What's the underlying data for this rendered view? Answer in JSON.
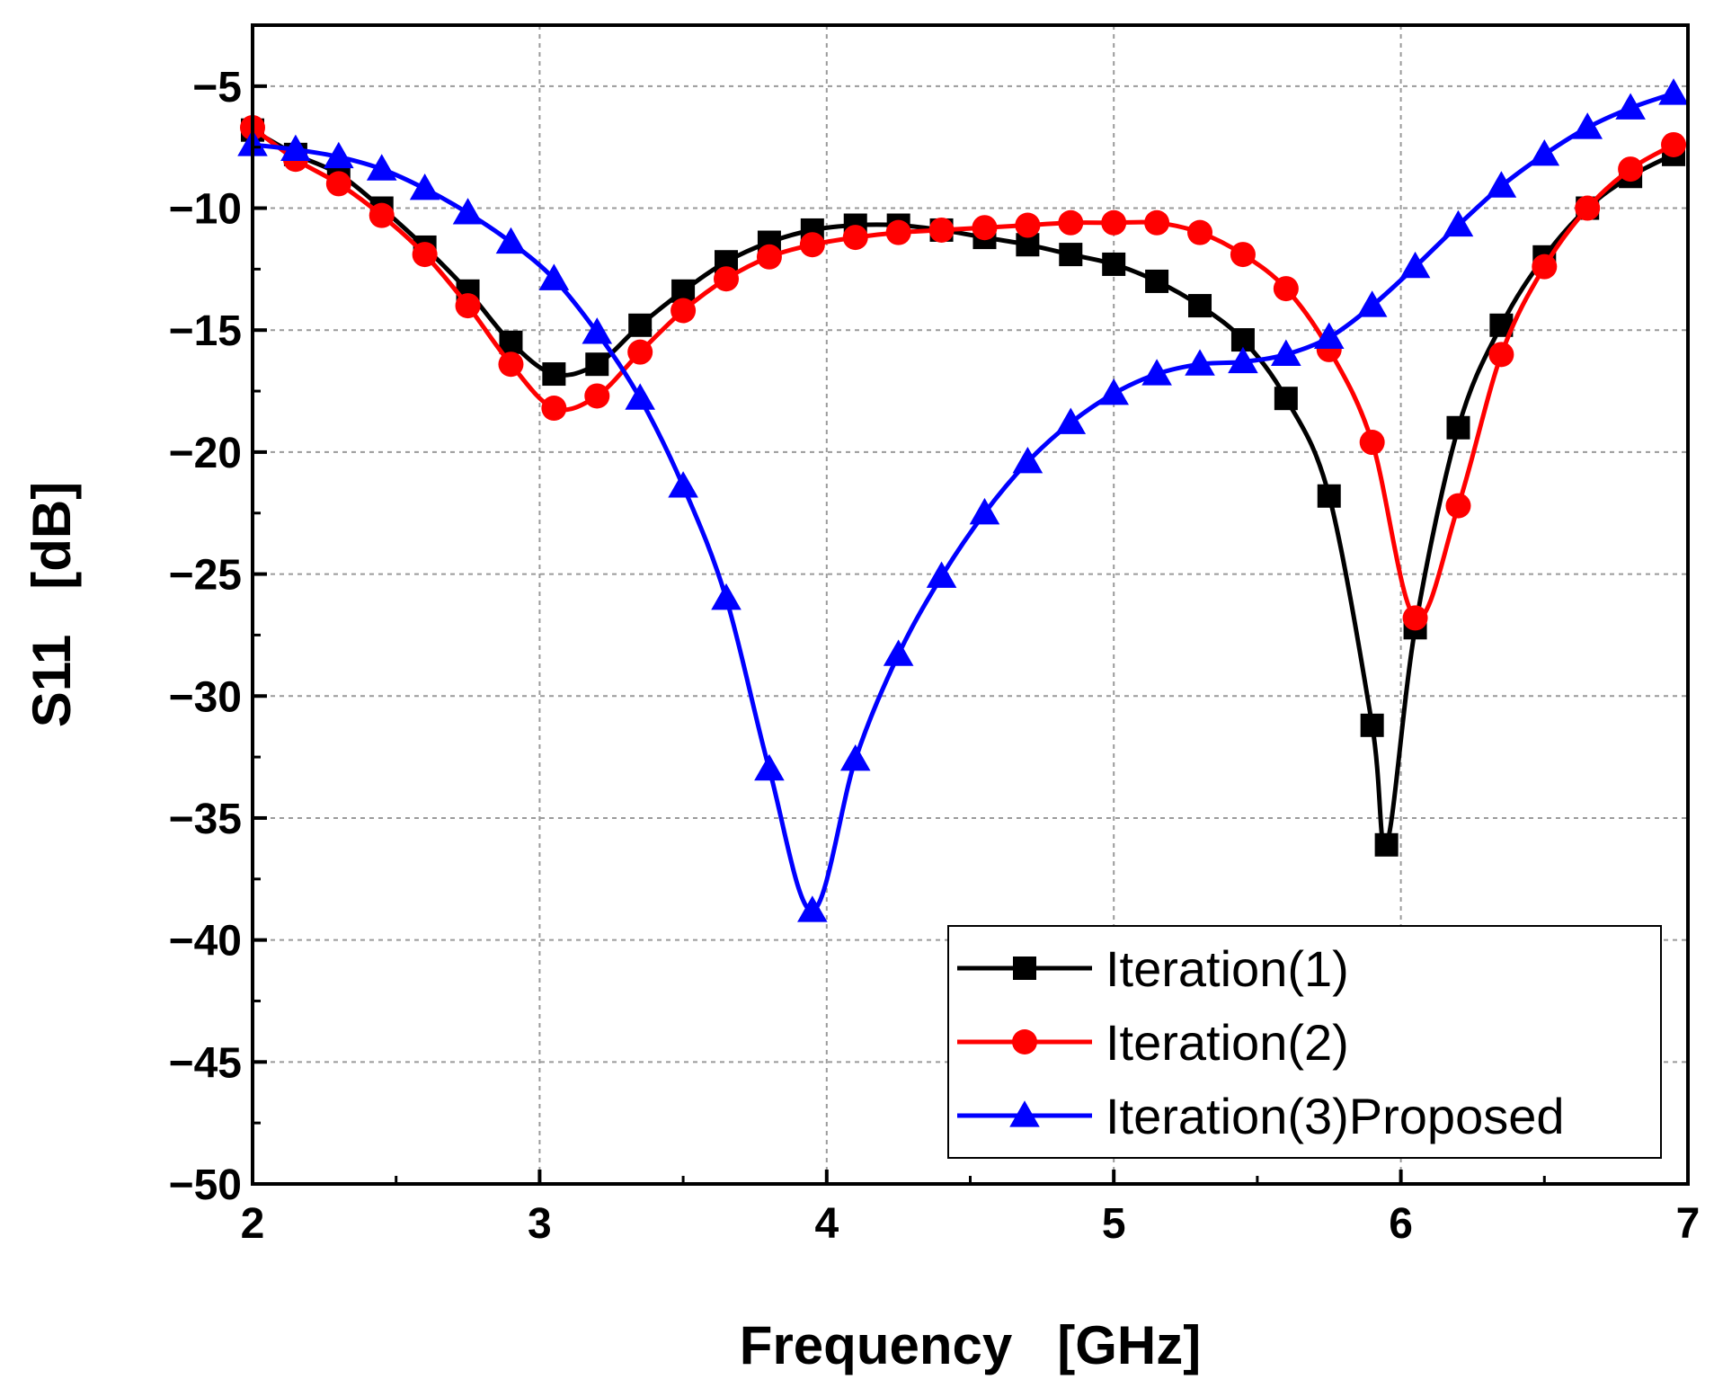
{
  "chart_data": {
    "type": "line",
    "title": "",
    "xlabel": "Frequency   [GHz]",
    "ylabel": "S11   [dB]",
    "xlim": [
      2,
      7
    ],
    "ylim": [
      -50,
      -2.5
    ],
    "xticks": [
      2,
      3,
      4,
      5,
      6,
      7
    ],
    "xtick_labels": [
      "2",
      "3",
      "4",
      "5",
      "6",
      "7"
    ],
    "yticks": [
      -50,
      -45,
      -40,
      -35,
      -30,
      -25,
      -20,
      -15,
      -10,
      -5
    ],
    "ytick_labels": [
      "−50",
      "−45",
      "−40",
      "−35",
      "−30",
      "−25",
      "−20",
      "−15",
      "−10",
      "−5"
    ],
    "grid": true,
    "legend_position": "bottom-right",
    "series": [
      {
        "name": "Iteration(1)",
        "color": "#000000",
        "marker": "square",
        "x": [
          2.0,
          2.15,
          2.3,
          2.45,
          2.6,
          2.75,
          2.9,
          3.05,
          3.2,
          3.35,
          3.5,
          3.65,
          3.8,
          3.95,
          4.1,
          4.25,
          4.4,
          4.55,
          4.7,
          4.85,
          5.0,
          5.15,
          5.3,
          5.45,
          5.6,
          5.75,
          5.9,
          5.95,
          6.05,
          6.2,
          6.35,
          6.5,
          6.65,
          6.8,
          6.95
        ],
        "y": [
          -6.8,
          -7.8,
          -8.6,
          -10.0,
          -11.6,
          -13.4,
          -15.5,
          -16.8,
          -16.4,
          -14.8,
          -13.4,
          -12.2,
          -11.4,
          -10.9,
          -10.7,
          -10.7,
          -10.9,
          -11.2,
          -11.5,
          -11.9,
          -12.3,
          -13.0,
          -14.0,
          -15.4,
          -17.8,
          -21.8,
          -31.2,
          -36.1,
          -27.2,
          -19.0,
          -14.8,
          -12.0,
          -10.0,
          -8.7,
          -7.8
        ]
      },
      {
        "name": "Iteration(2)",
        "color": "#ff0000",
        "marker": "circle",
        "x": [
          2.0,
          2.15,
          2.3,
          2.45,
          2.6,
          2.75,
          2.9,
          3.05,
          3.2,
          3.35,
          3.5,
          3.65,
          3.8,
          3.95,
          4.1,
          4.25,
          4.4,
          4.55,
          4.7,
          4.85,
          5.0,
          5.15,
          5.3,
          5.45,
          5.6,
          5.75,
          5.9,
          6.05,
          6.2,
          6.35,
          6.5,
          6.65,
          6.8,
          6.95
        ],
        "y": [
          -6.7,
          -8.0,
          -9.0,
          -10.3,
          -11.9,
          -14.0,
          -16.4,
          -18.2,
          -17.7,
          -15.9,
          -14.2,
          -12.9,
          -12.0,
          -11.5,
          -11.2,
          -11.0,
          -10.9,
          -10.8,
          -10.7,
          -10.6,
          -10.6,
          -10.6,
          -11.0,
          -11.9,
          -13.3,
          -15.8,
          -19.6,
          -26.8,
          -22.2,
          -16.0,
          -12.4,
          -10.0,
          -8.4,
          -7.4
        ]
      },
      {
        "name": "Iteration(3)Proposed",
        "color": "#0000ff",
        "marker": "triangle",
        "x": [
          2.0,
          2.15,
          2.3,
          2.45,
          2.6,
          2.75,
          2.9,
          3.05,
          3.2,
          3.35,
          3.5,
          3.65,
          3.8,
          3.95,
          4.1,
          4.25,
          4.4,
          4.55,
          4.7,
          4.85,
          5.0,
          5.15,
          5.3,
          5.45,
          5.6,
          5.75,
          5.9,
          6.05,
          6.2,
          6.35,
          6.5,
          6.65,
          6.8,
          6.95
        ],
        "y": [
          -7.4,
          -7.6,
          -7.9,
          -8.4,
          -9.2,
          -10.2,
          -11.4,
          -12.9,
          -15.1,
          -17.8,
          -21.4,
          -26.0,
          -33.0,
          -38.8,
          -32.6,
          -28.3,
          -25.1,
          -22.5,
          -20.4,
          -18.8,
          -17.6,
          -16.8,
          -16.4,
          -16.3,
          -16.0,
          -15.3,
          -14.0,
          -12.4,
          -10.7,
          -9.1,
          -7.8,
          -6.7,
          -5.9,
          -5.3
        ]
      }
    ]
  }
}
